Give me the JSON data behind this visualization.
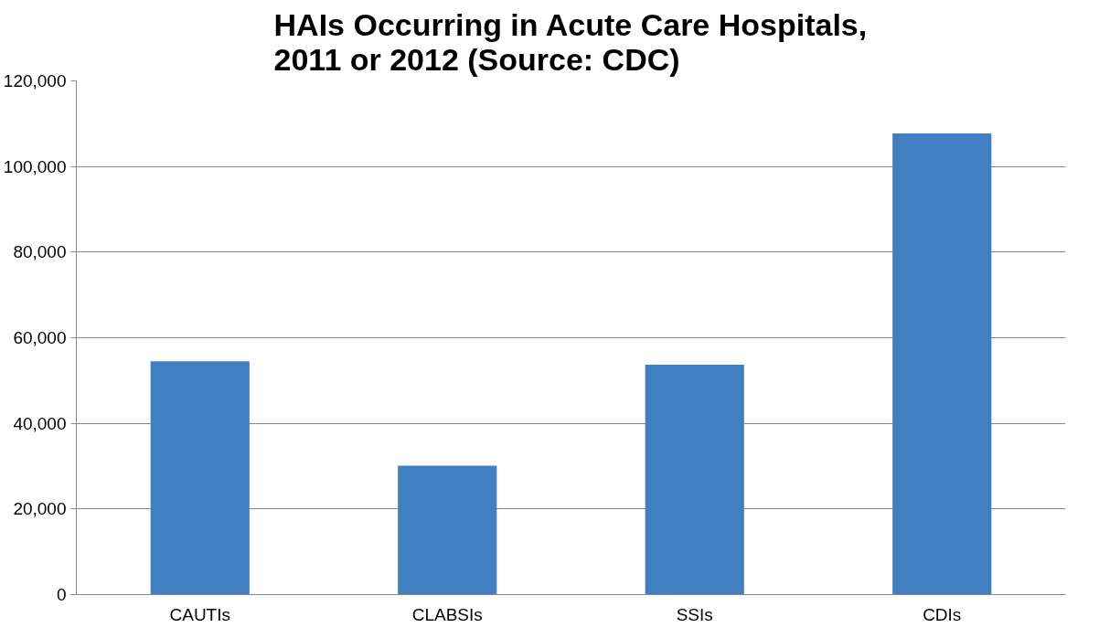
{
  "chart_data": {
    "type": "bar",
    "title": "HAIs Occurring in Acute Care Hospitals, 2011 or 2012 (Source: CDC)",
    "categories": [
      "CAUTIs",
      "CLABSIs",
      "SSIs",
      "CDIs"
    ],
    "values": [
      54500,
      30100,
      53700,
      107700
    ],
    "color": "#4180c0",
    "ylim": [
      0,
      120000
    ],
    "yticks": [
      {
        "value": 0,
        "label": "0"
      },
      {
        "value": 20000,
        "label": "20,000"
      },
      {
        "value": 40000,
        "label": "40,000"
      },
      {
        "value": 60000,
        "label": "60,000"
      },
      {
        "value": 80000,
        "label": "80,000"
      },
      {
        "value": 100000,
        "label": "100,000"
      },
      {
        "value": 120000,
        "label": "120,000"
      }
    ],
    "grid": "y"
  }
}
